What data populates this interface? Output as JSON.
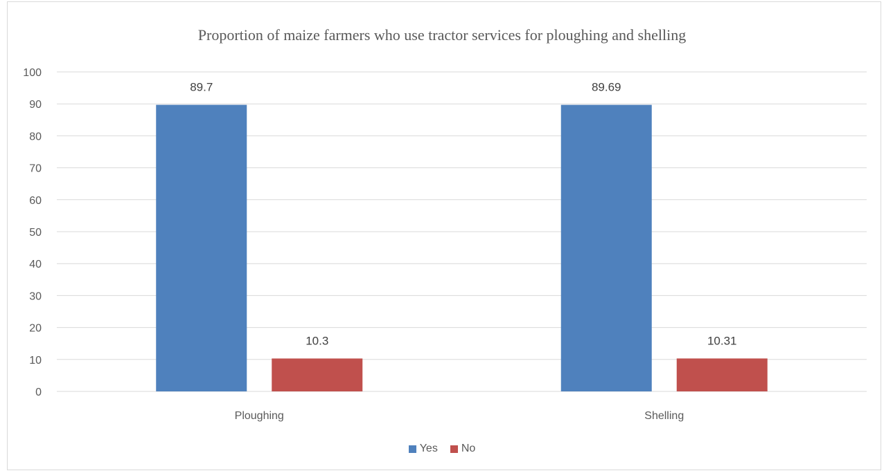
{
  "chart_data": {
    "type": "bar",
    "title": "Proportion of maize farmers who use tractor services for ploughing and shelling",
    "categories": [
      "Ploughing",
      "Shelling"
    ],
    "series": [
      {
        "name": "Yes",
        "values": [
          89.7,
          89.69
        ],
        "labels": [
          "89.7",
          "89.69"
        ],
        "color": "#4f81bd"
      },
      {
        "name": "No",
        "values": [
          10.3,
          10.31
        ],
        "labels": [
          "10.3",
          "10.31"
        ],
        "color": "#c0504d"
      }
    ],
    "yticks": [
      "0",
      "10",
      "20",
      "30",
      "40",
      "50",
      "60",
      "70",
      "80",
      "90",
      "100"
    ],
    "ylim": [
      0,
      100
    ],
    "grid": true,
    "legend_position": "bottom",
    "xlabel": "",
    "ylabel": ""
  }
}
